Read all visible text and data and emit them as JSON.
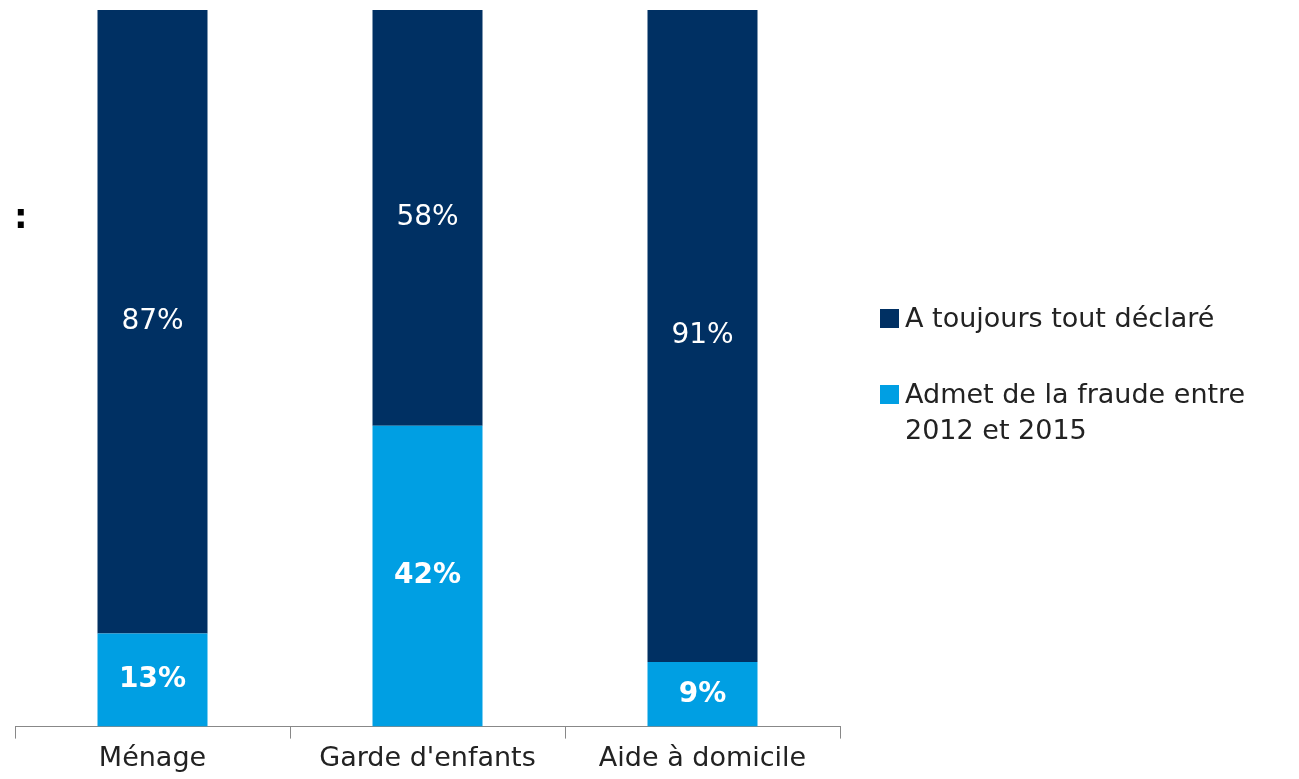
{
  "chart_data": {
    "type": "bar",
    "stacked": true,
    "categories": [
      "Ménage",
      "Garde d'enfants",
      "Aide à domicile"
    ],
    "series": [
      {
        "name": "Admet de la fraude entre 2012 et 2015",
        "color": "#009fe3",
        "values": [
          13,
          42,
          9
        ],
        "value_labels": [
          "13%",
          "42%",
          "9%"
        ]
      },
      {
        "name": "A toujours tout déclaré",
        "color": "#003063",
        "values": [
          87,
          58,
          91
        ],
        "value_labels": [
          "87%",
          "58%",
          "91%"
        ]
      }
    ],
    "ylim": [
      0,
      100
    ],
    "tick_labels": "x",
    "grid": false,
    "legend": "right",
    "annotations": [
      ":"
    ]
  }
}
